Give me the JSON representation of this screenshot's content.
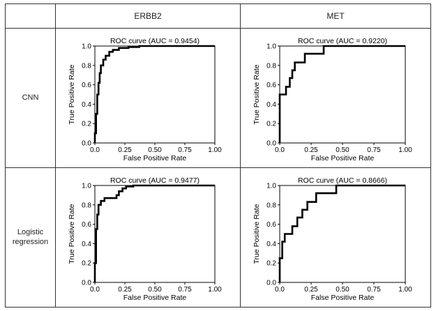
{
  "table": {
    "columns": [
      "ERBB2",
      "MET"
    ],
    "rows": [
      "CNN",
      "Logistic\nregression"
    ]
  },
  "chart_data": [
    {
      "type": "line",
      "model": "CNN",
      "target": "ERBB2",
      "title": "ROC curve (AUC = 0.9454)",
      "xlabel": "False Positive Rate",
      "ylabel": "True Positive Rate",
      "xlim": [
        0,
        1
      ],
      "ylim": [
        0,
        1
      ],
      "xticks": [
        "0.0",
        "0.25",
        "0.50",
        "0.75",
        "1.00"
      ],
      "yticks": [
        "0.0",
        "0.2",
        "0.4",
        "0.6",
        "0.8",
        "1.0"
      ],
      "series": [
        {
          "x": [
            0,
            0,
            0.01,
            0.01,
            0.02,
            0.02,
            0.03,
            0.03,
            0.04,
            0.04,
            0.05,
            0.05,
            0.07,
            0.07,
            0.09,
            0.09,
            0.12,
            0.12,
            0.15,
            0.15,
            0.2,
            0.2,
            0.28,
            0.28,
            0.37,
            0.37,
            1
          ],
          "y": [
            0,
            0.1,
            0.1,
            0.3,
            0.3,
            0.5,
            0.5,
            0.62,
            0.62,
            0.72,
            0.72,
            0.8,
            0.8,
            0.86,
            0.86,
            0.9,
            0.9,
            0.94,
            0.94,
            0.96,
            0.96,
            0.98,
            0.98,
            0.99,
            0.99,
            1,
            1
          ]
        }
      ]
    },
    {
      "type": "line",
      "model": "CNN",
      "target": "MET",
      "title": "ROC curve (AUC = 0.9220)",
      "xlabel": "False Positive Rate",
      "ylabel": "True Positive Rate",
      "xlim": [
        0,
        1
      ],
      "ylim": [
        0,
        1
      ],
      "xticks": [
        "0.0",
        "0.25",
        "0.50",
        "0.75",
        "1.00"
      ],
      "yticks": [
        "0.0",
        "0.2",
        "0.4",
        "0.6",
        "0.8",
        "1.0"
      ],
      "series": [
        {
          "x": [
            0,
            0,
            0.05,
            0.05,
            0.08,
            0.08,
            0.1,
            0.1,
            0.12,
            0.12,
            0.13,
            0.13,
            0.2,
            0.2,
            0.35,
            0.35,
            1
          ],
          "y": [
            0,
            0.5,
            0.5,
            0.58,
            0.58,
            0.67,
            0.67,
            0.75,
            0.75,
            0.83,
            0.83,
            0.83,
            0.83,
            0.92,
            0.92,
            1,
            1
          ]
        }
      ]
    },
    {
      "type": "line",
      "model": "Logistic regression",
      "target": "ERBB2",
      "title": "ROC curve (AUC = 0.9477)",
      "xlabel": "False Positive Rate",
      "ylabel": "True Positive Rate",
      "xlim": [
        0,
        1
      ],
      "ylim": [
        0,
        1
      ],
      "xticks": [
        "0.0",
        "0.25",
        "0.50",
        "0.75",
        "1.00"
      ],
      "yticks": [
        "0.0",
        "0.2",
        "0.4",
        "0.6",
        "0.8",
        "1.0"
      ],
      "series": [
        {
          "x": [
            0,
            0,
            0.01,
            0.01,
            0.02,
            0.02,
            0.03,
            0.03,
            0.05,
            0.05,
            0.08,
            0.08,
            0.18,
            0.18,
            0.2,
            0.2,
            0.23,
            0.23,
            0.26,
            0.26,
            0.32,
            0.32,
            1
          ],
          "y": [
            0,
            0.2,
            0.2,
            0.55,
            0.55,
            0.7,
            0.7,
            0.8,
            0.8,
            0.84,
            0.84,
            0.87,
            0.87,
            0.9,
            0.9,
            0.94,
            0.94,
            0.97,
            0.97,
            0.99,
            0.99,
            1,
            1
          ]
        }
      ]
    },
    {
      "type": "line",
      "model": "Logistic regression",
      "target": "MET",
      "title": "ROC curve (AUC = 0.8666)",
      "xlabel": "False Positive Rate",
      "ylabel": "True Positive Rate",
      "xlim": [
        0,
        1
      ],
      "ylim": [
        0,
        1
      ],
      "xticks": [
        "0.0",
        "0.25",
        "0.50",
        "0.75",
        "1.00"
      ],
      "yticks": [
        "0.0",
        "0.2",
        "0.4",
        "0.6",
        "0.8",
        "1.0"
      ],
      "series": [
        {
          "x": [
            0,
            0,
            0.02,
            0.02,
            0.04,
            0.04,
            0.1,
            0.1,
            0.14,
            0.14,
            0.18,
            0.18,
            0.22,
            0.22,
            0.25,
            0.25,
            0.29,
            0.29,
            0.45,
            0.45,
            1
          ],
          "y": [
            0,
            0.25,
            0.25,
            0.42,
            0.42,
            0.5,
            0.5,
            0.58,
            0.58,
            0.67,
            0.67,
            0.75,
            0.75,
            0.83,
            0.83,
            0.83,
            0.83,
            0.92,
            0.92,
            1,
            1
          ]
        }
      ]
    }
  ]
}
